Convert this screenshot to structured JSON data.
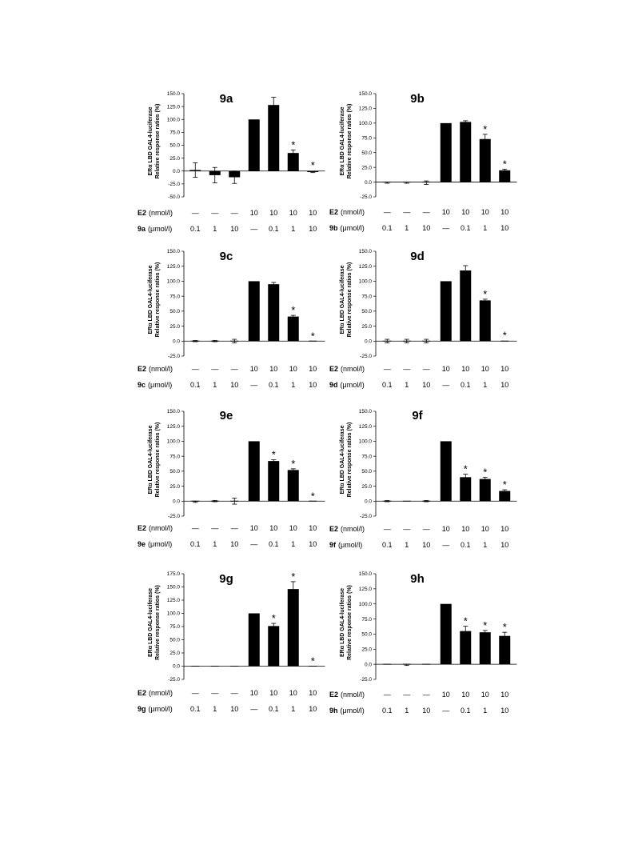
{
  "figure": {
    "y_axis_label_line1": "ERα LBD GAL4-luciferase",
    "y_axis_label_line2": "Relative response ratios (%)",
    "e2_label": "E2",
    "e2_unit": "(nmol/l)",
    "compound_unit": "(μmol/l)",
    "e2_values": [
      "—",
      "—",
      "—",
      "10",
      "10",
      "10",
      "10"
    ],
    "compound_values": [
      "0.1",
      "1",
      "10",
      "—",
      "0.1",
      "1",
      "10"
    ]
  },
  "chart_data": [
    {
      "type": "bar",
      "title": "9a",
      "compound_label": "9a",
      "ylim": [
        -50,
        150
      ],
      "yticks": [
        "150.0",
        "125.0",
        "100.0",
        "75.0",
        "50.0",
        "25.0",
        "0.0",
        "-25.0",
        "-50.0"
      ],
      "values": [
        2,
        -8,
        -12,
        100,
        128,
        35,
        -2
      ],
      "errors": [
        14,
        15,
        12,
        0,
        15,
        6,
        1
      ],
      "significant": [
        false,
        false,
        false,
        false,
        false,
        true,
        true
      ]
    },
    {
      "type": "bar",
      "title": "9b",
      "compound_label": "9b",
      "ylim": [
        -25,
        150
      ],
      "yticks": [
        "150.0",
        "125.0",
        "100.0",
        "75.0",
        "50.0",
        "25.0",
        "0.0",
        "-25.0"
      ],
      "values": [
        -1,
        -1,
        -1,
        100,
        102,
        73,
        20
      ],
      "errors": [
        1,
        1,
        3,
        0,
        2,
        8,
        2
      ],
      "significant": [
        false,
        false,
        false,
        false,
        false,
        true,
        true
      ]
    },
    {
      "type": "bar",
      "title": "9c",
      "compound_label": "9c",
      "ylim": [
        -25,
        150
      ],
      "yticks": [
        "150.0",
        "125.0",
        "100.0",
        "75.0",
        "50.0",
        "25.0",
        "0.0",
        "-25.0"
      ],
      "values": [
        0,
        0,
        0,
        100,
        95,
        41,
        0
      ],
      "errors": [
        1,
        1,
        3,
        0,
        3,
        2,
        0
      ],
      "significant": [
        false,
        false,
        false,
        false,
        false,
        true,
        true
      ]
    },
    {
      "type": "bar",
      "title": "9d",
      "compound_label": "9d",
      "ylim": [
        -25,
        150
      ],
      "yticks": [
        "150.0",
        "125.0",
        "100.0",
        "75.0",
        "50.0",
        "25.0",
        "0.0",
        "-25.0"
      ],
      "values": [
        0,
        0,
        0,
        100,
        118,
        68,
        1
      ],
      "errors": [
        3,
        3,
        3,
        0,
        8,
        2,
        0
      ],
      "significant": [
        false,
        false,
        false,
        false,
        false,
        true,
        true
      ]
    },
    {
      "type": "bar",
      "title": "9e",
      "compound_label": "9e",
      "ylim": [
        -25,
        150
      ],
      "yticks": [
        "150.0",
        "125.0",
        "100.0",
        "75.0",
        "50.0",
        "25.0",
        "0.0",
        "-25.0"
      ],
      "values": [
        -1,
        0,
        0,
        100,
        67,
        52,
        0
      ],
      "errors": [
        1,
        1,
        5,
        0,
        2,
        2,
        0
      ],
      "significant": [
        false,
        false,
        false,
        false,
        true,
        true,
        true
      ]
    },
    {
      "type": "bar",
      "title": "9f",
      "compound_label": "9f",
      "ylim": [
        -25,
        150
      ],
      "yticks": [
        "150.0",
        "125.0",
        "100.0",
        "75.0",
        "50.0",
        "25.0",
        "0.0",
        "-25.0"
      ],
      "values": [
        0,
        0,
        0,
        100,
        40,
        37,
        17
      ],
      "errors": [
        1,
        0,
        1,
        0,
        5,
        3,
        2
      ],
      "significant": [
        false,
        false,
        false,
        false,
        true,
        true,
        true
      ]
    },
    {
      "type": "bar",
      "title": "9g",
      "compound_label": "9g",
      "ylim": [
        -25,
        175
      ],
      "yticks": [
        "175.0",
        "150.0",
        "125.0",
        "100.0",
        "75.0",
        "50.0",
        "25.0",
        "0.0",
        "-25.0"
      ],
      "values": [
        0,
        0,
        0,
        100,
        76,
        146,
        0
      ],
      "errors": [
        0,
        0,
        0,
        0,
        5,
        14,
        0
      ],
      "significant": [
        false,
        false,
        false,
        false,
        true,
        true,
        true
      ]
    },
    {
      "type": "bar",
      "title": "9h",
      "compound_label": "9h",
      "ylim": [
        -25,
        150
      ],
      "yticks": [
        "150.0",
        "125.0",
        "100.0",
        "75.0",
        "50.0",
        "25.0",
        "0.0",
        "-25.0"
      ],
      "values": [
        0,
        -1,
        0,
        100,
        55,
        53,
        47
      ],
      "errors": [
        0,
        1,
        0,
        0,
        8,
        3,
        6
      ],
      "significant": [
        false,
        false,
        false,
        false,
        true,
        true,
        true
      ]
    }
  ]
}
